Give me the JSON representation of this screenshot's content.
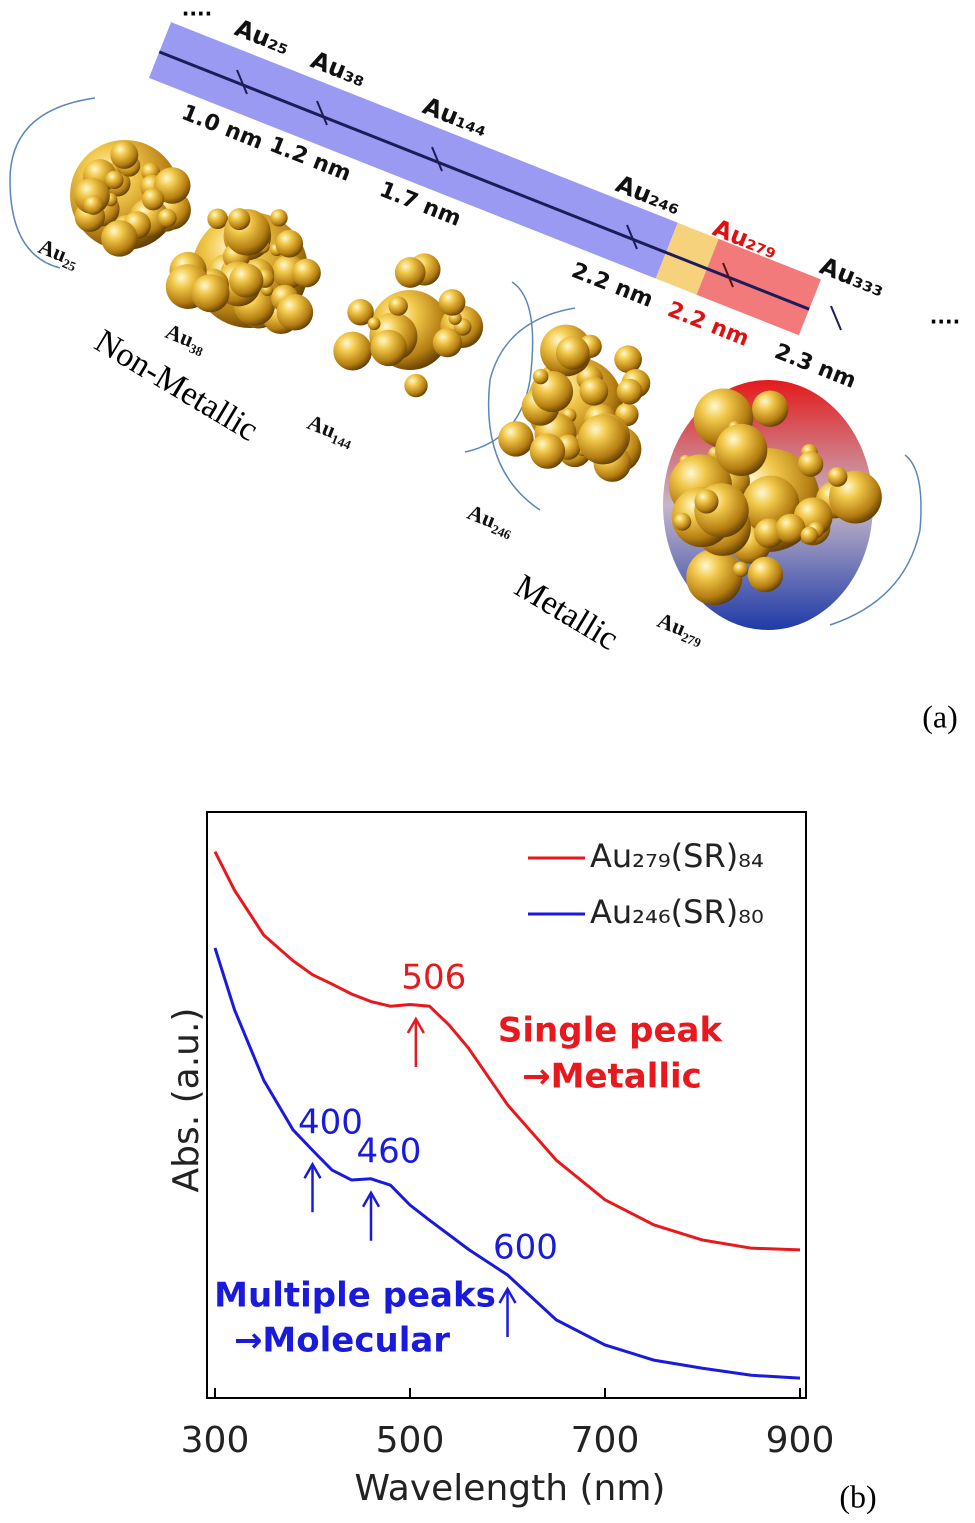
{
  "panel_a": {
    "label": "(a)",
    "scale": {
      "start": "....",
      "end": "....",
      "clusters": [
        "Au₂₅",
        "Au₃₈",
        "Au₁₄₄",
        "Au₂₄₆",
        "Au₂₇₉",
        "Au₃₃₃"
      ],
      "sizes": [
        "1.0 nm",
        "1.2 nm",
        "1.7 nm",
        "2.2 nm",
        "2.2 nm",
        "2.3 nm"
      ]
    },
    "structures": [
      "Au₂₅",
      "Au₃₈",
      "Au₁₄₄",
      "Au₂₄₆",
      "Au₂₇₉"
    ],
    "groups": [
      "Non-Metallic",
      "Metallic"
    ]
  },
  "chart_data": {
    "type": "line",
    "panel_label": "(b)",
    "xlabel": "Wavelength (nm)",
    "ylabel": "Abs. (a.u.)",
    "x": [
      300,
      320,
      350,
      380,
      400,
      420,
      440,
      460,
      480,
      500,
      520,
      540,
      560,
      600,
      650,
      700,
      750,
      800,
      850,
      900
    ],
    "xlim": [
      300,
      900
    ],
    "xticks": [
      300,
      500,
      700,
      900
    ],
    "ylim": [
      0,
      1
    ],
    "series": [
      {
        "name": "Au₂₇₉(SR)₈₄",
        "color": "#e8191e",
        "values": [
          0.937,
          0.871,
          0.794,
          0.75,
          0.726,
          0.71,
          0.693,
          0.68,
          0.672,
          0.675,
          0.672,
          0.64,
          0.6,
          0.503,
          0.408,
          0.34,
          0.297,
          0.271,
          0.257,
          0.254
        ],
        "peaks": [
          506
        ],
        "notes": [
          "Single peak",
          "→Metallic"
        ]
      },
      {
        "name": "Au₂₄₆(SR)₈₀",
        "color": "#1a1adc",
        "values": [
          0.772,
          0.666,
          0.545,
          0.46,
          0.425,
          0.391,
          0.374,
          0.376,
          0.365,
          0.331,
          0.305,
          0.28,
          0.255,
          0.211,
          0.134,
          0.091,
          0.065,
          0.051,
          0.039,
          0.034
        ],
        "peaks": [
          400,
          460,
          600
        ],
        "notes": [
          "Multiple peaks",
          "→Molecular"
        ]
      }
    ]
  }
}
